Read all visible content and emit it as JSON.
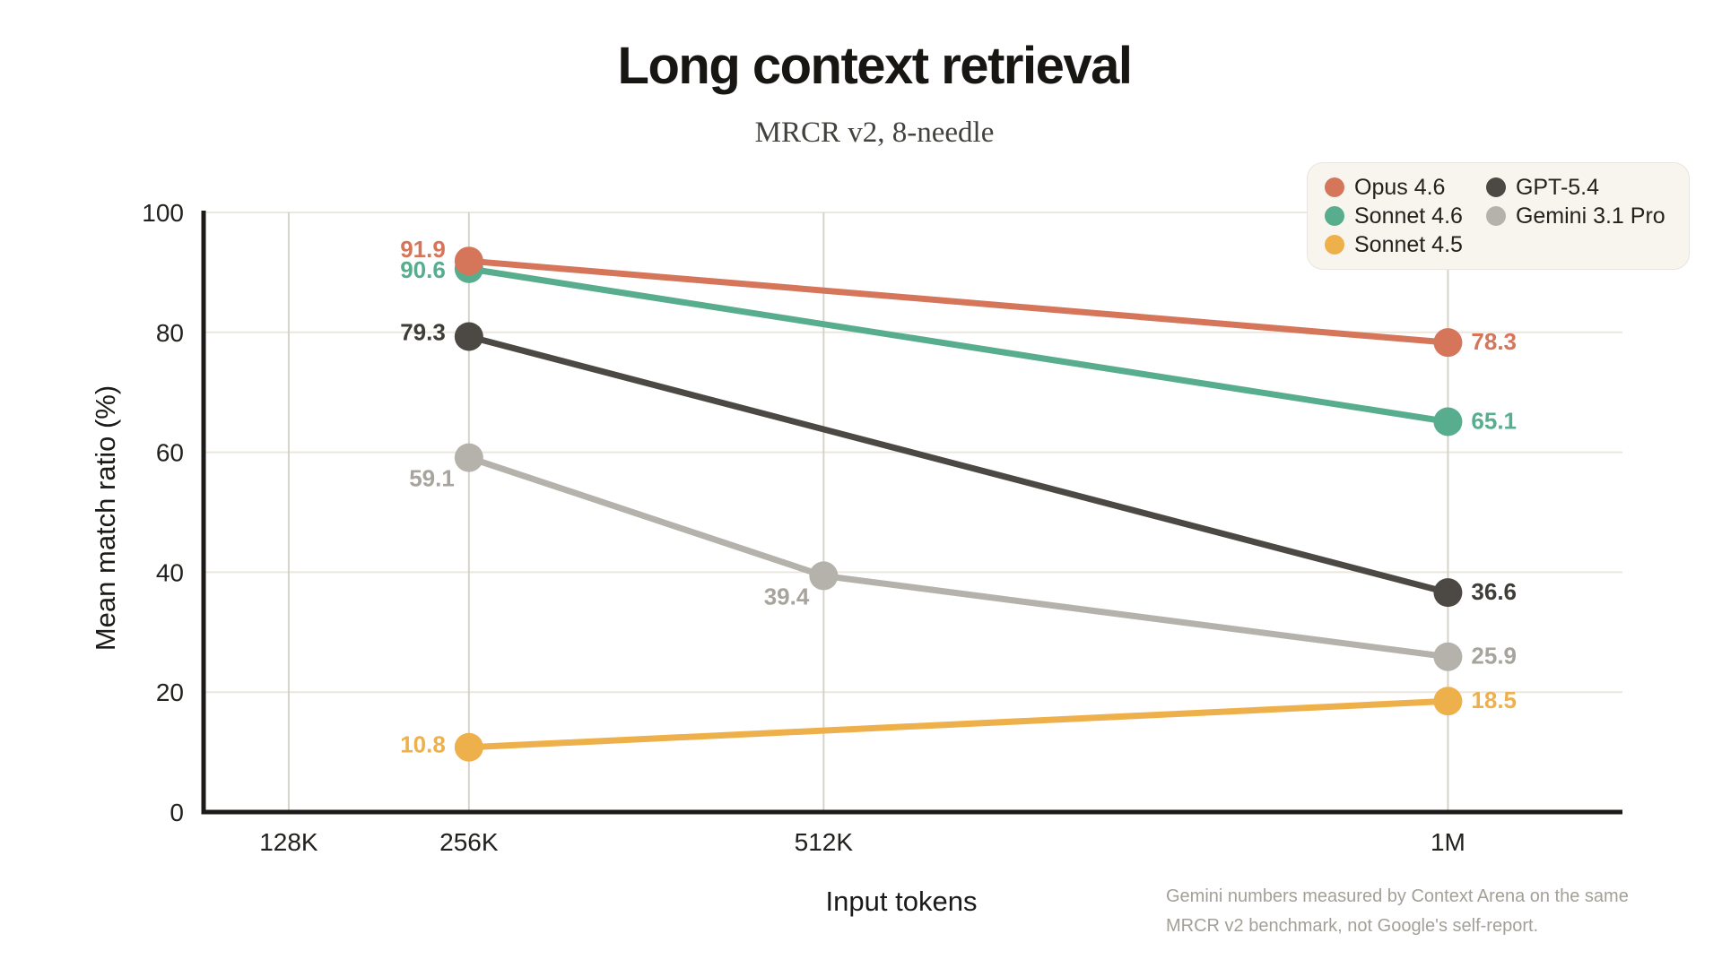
{
  "title": "Long context retrieval",
  "subtitle": "MRCR v2, 8-needle",
  "footnote": "Gemini numbers measured by Context Arena on the same MRCR v2 benchmark, not Google's self-report.",
  "chart_data": {
    "type": "line",
    "title": "Long context retrieval",
    "subtitle": "MRCR v2, 8-needle",
    "xlabel": "Input tokens",
    "ylabel": "Mean match ratio (%)",
    "x_categories": [
      "128K",
      "256K",
      "512K",
      "1M"
    ],
    "x_fractions": {
      "128K": 0.06,
      "256K": 0.187,
      "512K": 0.437,
      "1M": 0.877
    },
    "y_ticks": [
      0,
      20,
      40,
      60,
      80,
      100
    ],
    "ylim": [
      0,
      100
    ],
    "grid": true,
    "legend_position": "top-right",
    "colors": {
      "horizontal_grid": "#eae7de",
      "vertical_grid": "#d6d3cb",
      "axis": "#1c1b19",
      "tick_label": "#22211e"
    },
    "series": [
      {
        "name": "Opus 4.6",
        "color": "#d5765a",
        "points": [
          {
            "x": "256K",
            "y": 91.9,
            "label_side": "left",
            "label_dy": -14
          },
          {
            "x": "1M",
            "y": 78.3,
            "label_side": "right"
          }
        ]
      },
      {
        "name": "Sonnet 4.6",
        "color": "#58ad8e",
        "points": [
          {
            "x": "256K",
            "y": 90.6,
            "label_side": "left"
          },
          {
            "x": "1M",
            "y": 65.1,
            "label_side": "right"
          }
        ]
      },
      {
        "name": "Sonnet 4.5",
        "color": "#eeb04b",
        "points": [
          {
            "x": "256K",
            "y": 10.8,
            "label_side": "left",
            "label_dy": -4
          },
          {
            "x": "1M",
            "y": 18.5,
            "label_side": "right"
          }
        ]
      },
      {
        "name": "GPT-5.4",
        "color": "#4c4944",
        "label_color": "#3f3d38",
        "points": [
          {
            "x": "256K",
            "y": 79.3,
            "label_side": "left",
            "label_dy": -6
          },
          {
            "x": "1M",
            "y": 36.6,
            "label_side": "right"
          }
        ]
      },
      {
        "name": "Gemini 3.1 Pro",
        "color": "#b4b2ab",
        "label_color": "#a7a49d",
        "points": [
          {
            "x": "256K",
            "y": 59.1,
            "label_side": "below"
          },
          {
            "x": "512K",
            "y": 39.4,
            "label_side": "below"
          },
          {
            "x": "1M",
            "y": 25.9,
            "label_side": "right"
          }
        ]
      }
    ]
  }
}
